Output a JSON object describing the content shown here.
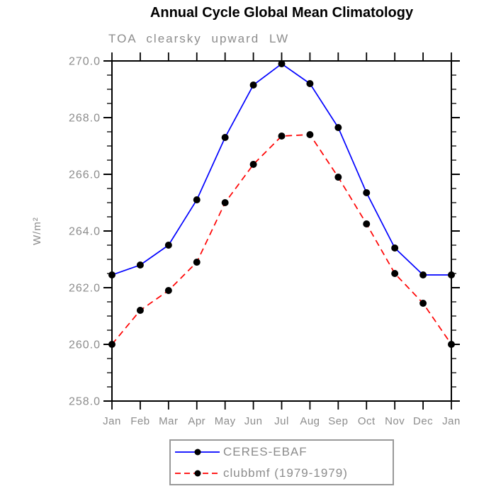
{
  "chart_data": {
    "type": "line",
    "title": "Annual Cycle Global Mean Climatology",
    "subtitle": "TOA clearsky upward LW",
    "ylabel": "W/m²",
    "xlabel": "",
    "categories": [
      "Jan",
      "Feb",
      "Mar",
      "Apr",
      "May",
      "Jun",
      "Jul",
      "Aug",
      "Sep",
      "Oct",
      "Nov",
      "Dec",
      "Jan"
    ],
    "ylim": [
      258.0,
      270.0
    ],
    "y_major_step": 2.0,
    "y_minor_step": 0.5,
    "y_tick_labels": [
      "258.0",
      "260.0",
      "262.0",
      "264.0",
      "266.0",
      "268.0",
      "270.0"
    ],
    "grid": false,
    "legend_position": "bottom",
    "series": [
      {
        "name": "CERES-EBAF",
        "color": "#0000ff",
        "style": "solid",
        "marker": "circle",
        "marker_color": "#000000",
        "values": [
          262.45,
          262.8,
          263.5,
          265.1,
          267.3,
          269.15,
          269.9,
          269.2,
          267.65,
          265.35,
          263.4,
          262.45,
          262.45
        ]
      },
      {
        "name": "clubbmf (1979-1979)",
        "color": "#ff0000",
        "style": "dashed",
        "marker": "circle",
        "marker_color": "#000000",
        "values": [
          260.0,
          261.2,
          261.9,
          262.9,
          265.0,
          266.35,
          267.35,
          267.4,
          265.9,
          264.25,
          262.5,
          261.45,
          260.0
        ]
      }
    ]
  },
  "colors": {
    "axis_black": "#000000",
    "label_gray": "#8c8c8c",
    "marker_black": "#000000",
    "legend_border_gray": "#999999",
    "background": "#ffffff"
  }
}
